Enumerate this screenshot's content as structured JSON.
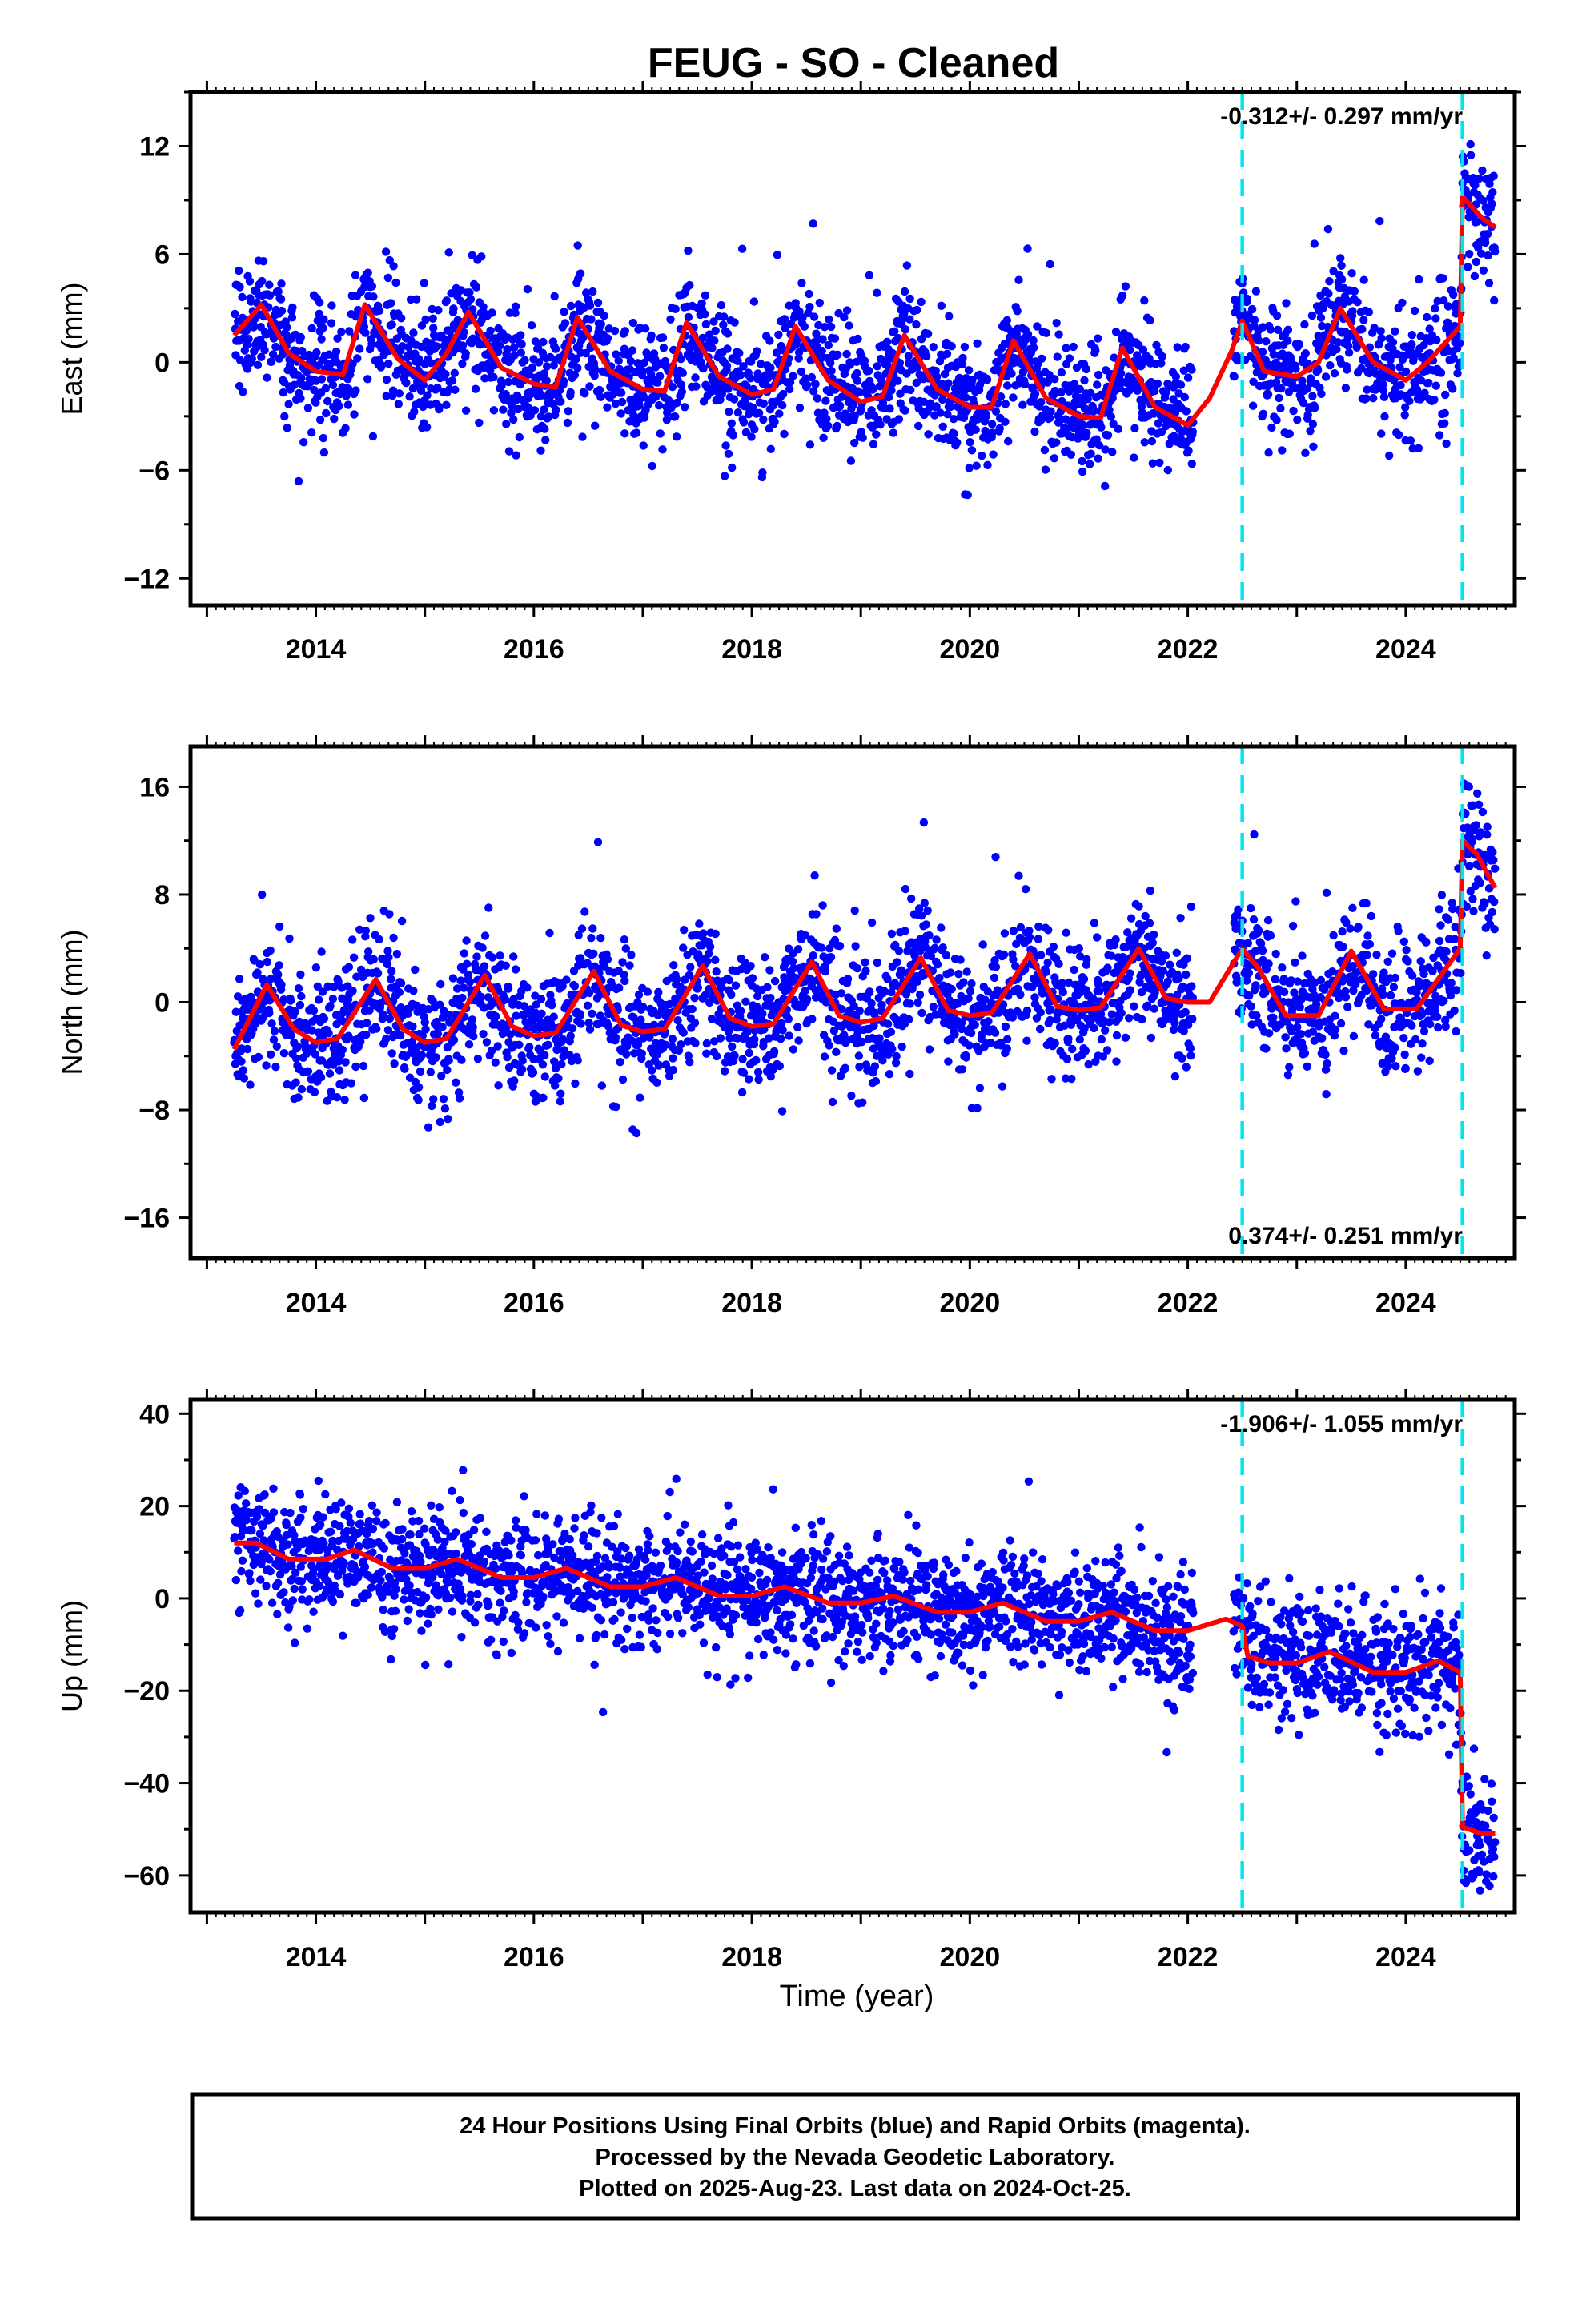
{
  "figure": {
    "title": "FEUG  - SO - Cleaned",
    "xlabel": "Time (year)",
    "footer": [
      "24 Hour Positions Using Final Orbits (blue) and Rapid Orbits (magenta).",
      "Processed by the Nevada Geodetic Laboratory.",
      "Plotted on 2025-Aug-23. Last data on 2024-Oct-25."
    ],
    "colors": {
      "data": "#0000ff",
      "model": "#ff0000",
      "event_line": "#00e5ee",
      "axis": "#000000"
    }
  },
  "chart_data": [
    {
      "type": "scatter",
      "component": "east",
      "ylabel": "East (mm)",
      "rate_label": "-0.312+/- 0.297 mm/yr",
      "rate_position": "top-right",
      "xlim": [
        2012.85,
        2025.0
      ],
      "ylim": [
        -13.5,
        15.0
      ],
      "xticks": [
        2014,
        2016,
        2018,
        2020,
        2022,
        2024
      ],
      "xtick_labels": [
        "2014",
        "2016",
        "2018",
        "2020",
        "2022",
        "2024"
      ],
      "yticks": [
        -12,
        -6,
        0,
        6,
        12
      ],
      "ytick_labels": [
        "−12",
        "−6",
        "0",
        "6",
        "12"
      ],
      "event_lines": [
        2022.5,
        2024.52
      ],
      "grid": false,
      "data_span": [
        2013.25,
        2024.82
      ],
      "model": {
        "x": [
          2013.25,
          2013.5,
          2013.75,
          2014.0,
          2014.25,
          2014.45,
          2014.75,
          2015.0,
          2015.2,
          2015.4,
          2015.7,
          2016.0,
          2016.2,
          2016.4,
          2016.7,
          2017.0,
          2017.2,
          2017.4,
          2017.7,
          2018.0,
          2018.2,
          2018.4,
          2018.7,
          2019.0,
          2019.2,
          2019.4,
          2019.7,
          2020.0,
          2020.2,
          2020.4,
          2020.7,
          2021.0,
          2021.2,
          2021.4,
          2021.7,
          2022.0,
          2022.2,
          2022.4,
          2022.5,
          2022.7,
          2023.0,
          2023.2,
          2023.4,
          2023.7,
          2024.0,
          2024.2,
          2024.5,
          2024.52,
          2024.7,
          2024.82
        ],
        "y": [
          1.5,
          3.2,
          0.5,
          -0.5,
          -0.7,
          3.2,
          0.2,
          -1.0,
          0.5,
          2.8,
          -0.3,
          -1.2,
          -1.4,
          2.5,
          -0.5,
          -1.5,
          -1.6,
          2.2,
          -0.8,
          -1.8,
          -1.5,
          2.0,
          -1.0,
          -2.2,
          -1.9,
          1.5,
          -1.5,
          -2.5,
          -2.5,
          1.2,
          -2.0,
          -3.0,
          -3.1,
          0.8,
          -2.5,
          -3.5,
          -2.0,
          0.6,
          2.3,
          -0.5,
          -0.8,
          0.0,
          3.0,
          0.0,
          -1.0,
          0.0,
          2.0,
          9.2,
          8.0,
          7.5
        ]
      }
    },
    {
      "type": "scatter",
      "component": "north",
      "ylabel": "North (mm)",
      "rate_label": "0.374+/- 0.251 mm/yr",
      "rate_position": "bottom-right",
      "xlim": [
        2012.85,
        2025.0
      ],
      "ylim": [
        -19.0,
        19.0
      ],
      "xticks": [
        2014,
        2016,
        2018,
        2020,
        2022,
        2024
      ],
      "xtick_labels": [
        "2014",
        "2016",
        "2018",
        "2020",
        "2022",
        "2024"
      ],
      "yticks": [
        -16,
        -8,
        0,
        8,
        16
      ],
      "ytick_labels": [
        "−16",
        "−8",
        "0",
        "8",
        "16"
      ],
      "event_lines": [
        2022.5,
        2024.52
      ],
      "grid": false,
      "data_span": [
        2013.25,
        2024.82
      ],
      "model": {
        "x": [
          2013.25,
          2013.55,
          2013.8,
          2014.0,
          2014.2,
          2014.55,
          2014.8,
          2015.0,
          2015.2,
          2015.55,
          2015.8,
          2016.0,
          2016.2,
          2016.55,
          2016.8,
          2017.0,
          2017.2,
          2017.55,
          2017.8,
          2018.0,
          2018.2,
          2018.55,
          2018.8,
          2019.0,
          2019.2,
          2019.55,
          2019.8,
          2020.0,
          2020.2,
          2020.55,
          2020.8,
          2021.0,
          2021.2,
          2021.55,
          2021.8,
          2022.0,
          2022.2,
          2022.5,
          2022.65,
          2022.9,
          2023.2,
          2023.5,
          2023.8,
          2024.1,
          2024.5,
          2024.52,
          2024.65,
          2024.82
        ],
        "y": [
          -3.5,
          1.3,
          -2.0,
          -3.0,
          -2.7,
          1.7,
          -2.0,
          -3.0,
          -2.7,
          2.0,
          -1.8,
          -2.5,
          -2.3,
          2.3,
          -1.7,
          -2.2,
          -2.0,
          2.7,
          -1.2,
          -1.8,
          -1.6,
          3.0,
          -1.0,
          -1.5,
          -1.2,
          3.3,
          -0.6,
          -1.0,
          -0.8,
          3.6,
          -0.3,
          -0.6,
          -0.4,
          4.0,
          0.3,
          0.0,
          0.0,
          4.0,
          2.5,
          -1.0,
          -1.0,
          3.8,
          -0.5,
          -0.5,
          4.0,
          12.0,
          11.0,
          8.5
        ]
      }
    },
    {
      "type": "scatter",
      "component": "up",
      "ylabel": "Up (mm)",
      "rate_label": "-1.906+/- 1.055 mm/yr",
      "rate_position": "top-right",
      "xlim": [
        2012.85,
        2025.0
      ],
      "ylim": [
        -68.0,
        43.0
      ],
      "xticks": [
        2014,
        2016,
        2018,
        2020,
        2022,
        2024
      ],
      "xtick_labels": [
        "2014",
        "2016",
        "2018",
        "2020",
        "2022",
        "2024"
      ],
      "yticks": [
        -60,
        -40,
        -20,
        0,
        20,
        40
      ],
      "ytick_labels": [
        "−60",
        "−40",
        "−20",
        "0",
        "20",
        "40"
      ],
      "event_lines": [
        2022.5,
        2024.52
      ],
      "grid": false,
      "data_span": [
        2013.25,
        2024.82
      ],
      "model": {
        "x": [
          2013.25,
          2013.45,
          2013.75,
          2014.1,
          2014.35,
          2014.7,
          2015.0,
          2015.3,
          2015.7,
          2016.0,
          2016.3,
          2016.7,
          2017.0,
          2017.3,
          2017.7,
          2018.0,
          2018.3,
          2018.7,
          2019.0,
          2019.3,
          2019.7,
          2020.0,
          2020.3,
          2020.7,
          2021.0,
          2021.3,
          2021.7,
          2022.0,
          2022.35,
          2022.5,
          2022.55,
          2022.75,
          2023.0,
          2023.3,
          2023.7,
          2024.0,
          2024.3,
          2024.5,
          2024.52,
          2024.7,
          2024.82
        ],
        "y": [
          12.0,
          12.0,
          8.5,
          8.5,
          10.5,
          6.5,
          6.5,
          8.5,
          4.5,
          4.5,
          6.5,
          2.5,
          2.5,
          4.5,
          0.5,
          0.5,
          2.5,
          -1.0,
          -1.0,
          0.5,
          -3.0,
          -3.0,
          -1.0,
          -5.0,
          -5.0,
          -3.0,
          -7.0,
          -7.0,
          -4.5,
          -6.0,
          -12.5,
          -14.0,
          -14.0,
          -11.5,
          -16.0,
          -16.0,
          -13.5,
          -16.0,
          -49.5,
          -51.0,
          -51.0
        ]
      }
    }
  ]
}
